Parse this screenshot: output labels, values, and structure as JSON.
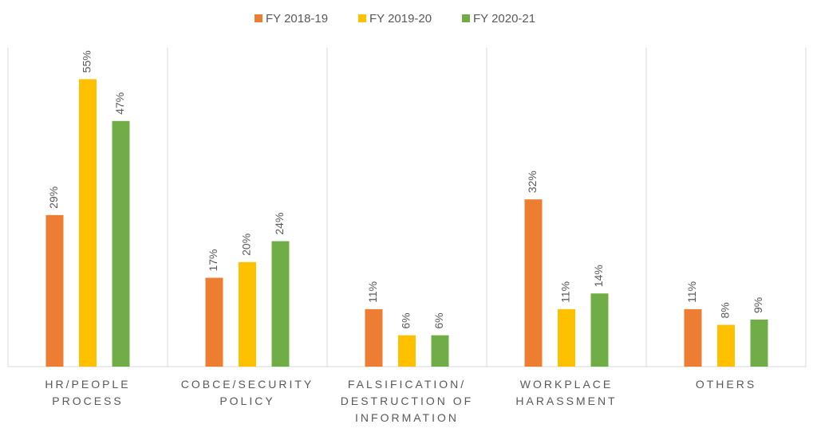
{
  "chart_data": {
    "type": "bar",
    "categories": [
      "HR/PEOPLE\nPROCESS",
      "COBCE/SECURITY\nPOLICY",
      "FALSIFICATION/\nDESTRUCTION OF\nINFORMATION",
      "WORKPLACE\nHARASSMENT",
      "OTHERS"
    ],
    "series": [
      {
        "name": "FY 2018-19",
        "color": "#ED7D31",
        "values": [
          29,
          17,
          11,
          32,
          11
        ],
        "value_labels": [
          "29%",
          "17%",
          "11%",
          "32%",
          "11%"
        ]
      },
      {
        "name": "FY 2019-20",
        "color": "#FFC000",
        "values": [
          55,
          20,
          6,
          11,
          8
        ],
        "value_labels": [
          "55%",
          "20%",
          "6%",
          "11%",
          "8%"
        ]
      },
      {
        "name": "FY 2020-21",
        "color": "#70AD47",
        "values": [
          47,
          24,
          6,
          14,
          9
        ],
        "value_labels": [
          "47%",
          "24%",
          "6%",
          "14%",
          "9%"
        ]
      }
    ],
    "ylim": [
      0,
      61
    ],
    "legend": "top"
  }
}
